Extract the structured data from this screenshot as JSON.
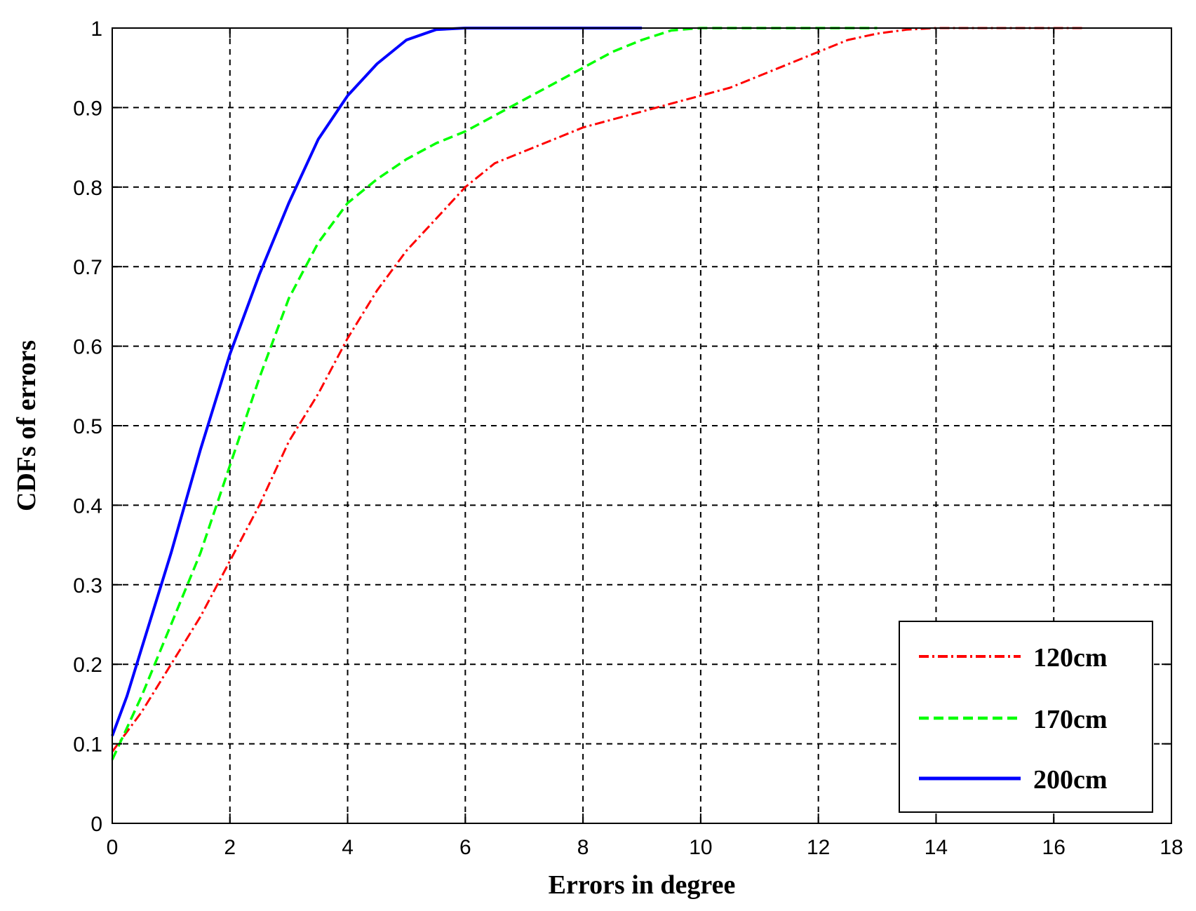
{
  "chart_data": {
    "type": "line",
    "xlabel": "Errors in degree",
    "ylabel": "CDFs of errors",
    "xlim": [
      0,
      18
    ],
    "ylim": [
      0,
      1
    ],
    "x_ticks": [
      "0",
      "2",
      "4",
      "6",
      "8",
      "10",
      "12",
      "14",
      "16",
      "18"
    ],
    "y_ticks": [
      "0",
      "0.1",
      "0.2",
      "0.3",
      "0.4",
      "0.5",
      "0.6",
      "0.7",
      "0.8",
      "0.9",
      "1"
    ],
    "grid": true,
    "legend_position": "bottom-right",
    "series": [
      {
        "name": "120cm",
        "color": "#ff0000",
        "style": "dash-dot",
        "x": [
          0,
          0.5,
          1,
          1.5,
          2,
          2.5,
          3,
          3.5,
          4,
          4.5,
          5,
          5.5,
          6,
          6.5,
          7,
          7.5,
          8,
          8.5,
          9,
          9.5,
          10,
          10.5,
          11,
          11.5,
          12,
          12.5,
          13,
          13.5,
          14,
          15,
          16,
          16.5
        ],
        "y": [
          0.09,
          0.14,
          0.2,
          0.26,
          0.33,
          0.4,
          0.48,
          0.54,
          0.61,
          0.67,
          0.72,
          0.76,
          0.8,
          0.83,
          0.845,
          0.86,
          0.875,
          0.885,
          0.895,
          0.905,
          0.915,
          0.925,
          0.94,
          0.955,
          0.97,
          0.985,
          0.993,
          0.998,
          1.0,
          1.0,
          1.0,
          1.0
        ]
      },
      {
        "name": "170cm",
        "color": "#00ff00",
        "style": "dashed",
        "x": [
          0,
          0.5,
          1,
          1.5,
          2,
          2.5,
          3,
          3.5,
          4,
          4.5,
          5,
          5.5,
          6,
          6.5,
          7,
          7.5,
          8,
          8.5,
          9,
          9.5,
          10,
          11,
          12,
          13
        ],
        "y": [
          0.08,
          0.16,
          0.25,
          0.34,
          0.45,
          0.56,
          0.66,
          0.73,
          0.78,
          0.81,
          0.835,
          0.855,
          0.87,
          0.89,
          0.91,
          0.93,
          0.95,
          0.97,
          0.985,
          0.997,
          1.0,
          1.0,
          1.0,
          1.0
        ]
      },
      {
        "name": "200cm",
        "color": "#0000ff",
        "style": "solid",
        "x": [
          0,
          0.25,
          0.5,
          0.75,
          1,
          1.5,
          2,
          2.5,
          3,
          3.5,
          4,
          4.5,
          5,
          5.5,
          6,
          7,
          8,
          9
        ],
        "y": [
          0.11,
          0.16,
          0.22,
          0.28,
          0.34,
          0.47,
          0.59,
          0.69,
          0.78,
          0.86,
          0.915,
          0.955,
          0.985,
          0.998,
          1.0,
          1.0,
          1.0,
          1.0
        ]
      }
    ]
  }
}
